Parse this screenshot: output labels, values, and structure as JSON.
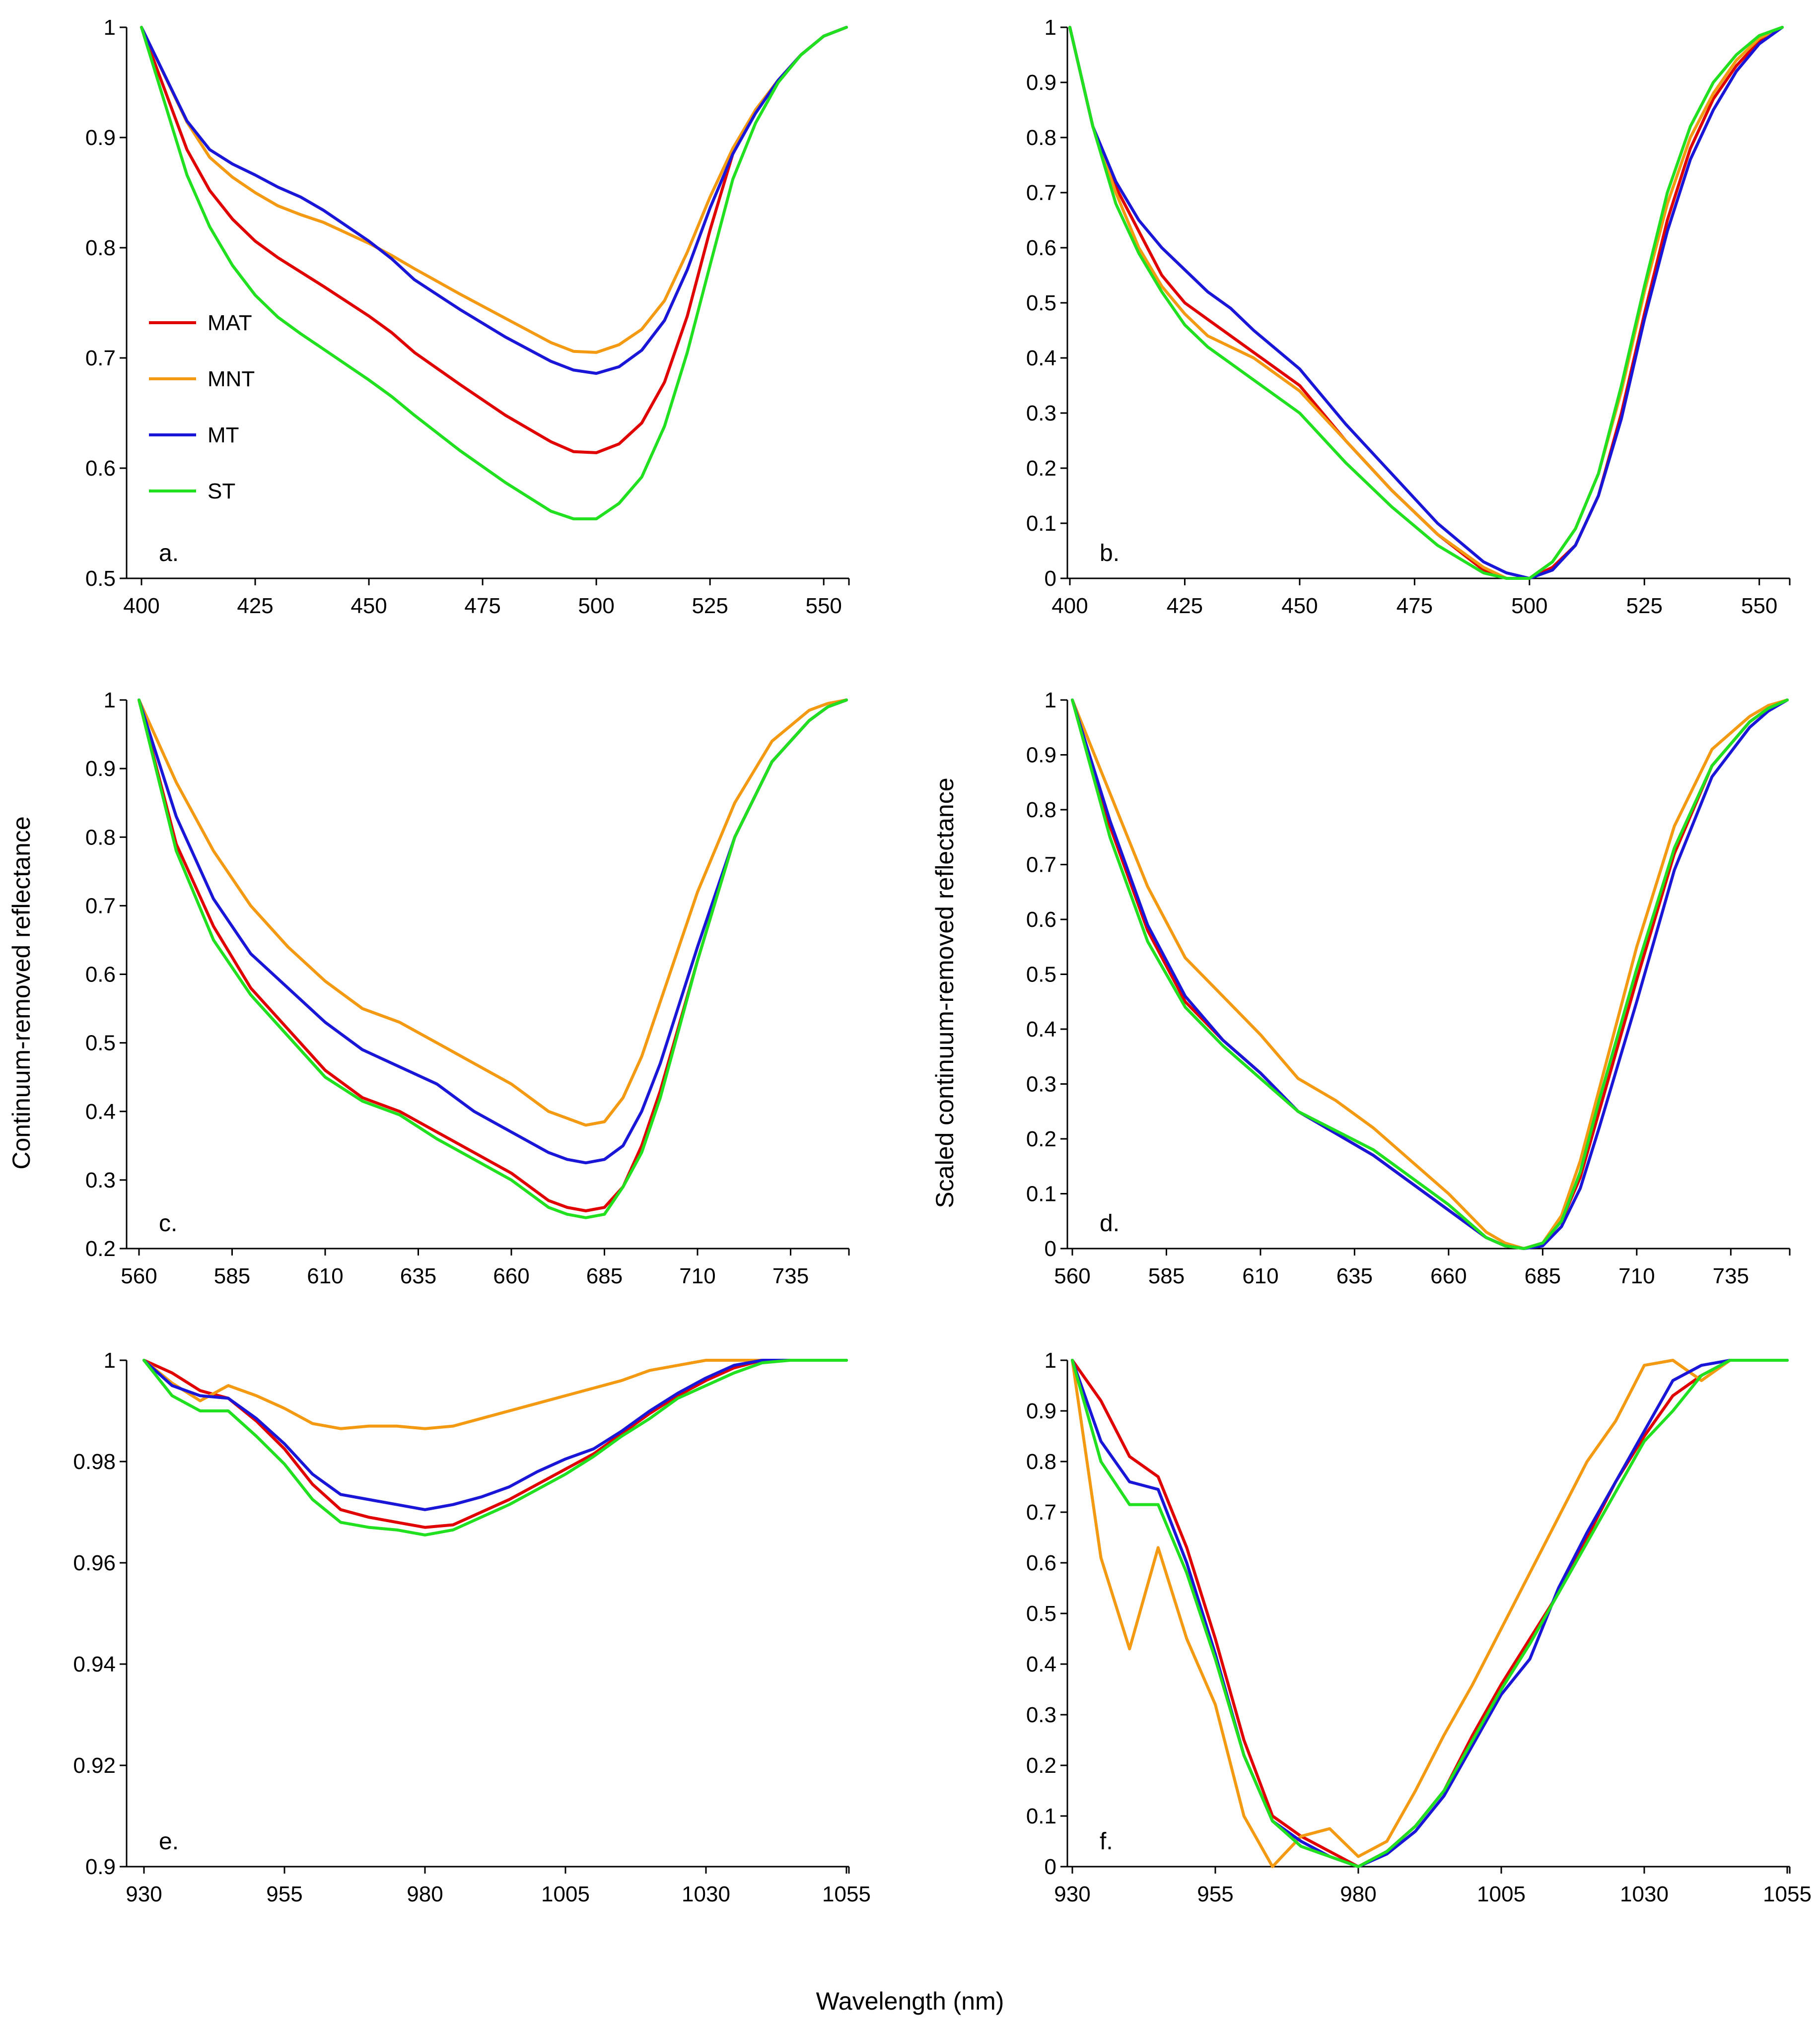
{
  "figure": {
    "shared_ylabel_left": "Continuum-removed reflectance",
    "shared_ylabel_right": "Scaled continuum-removed reflectance",
    "shared_xlabel": "Wavelength (nm)"
  },
  "legend": [
    {
      "name": "MAT",
      "color": "#e00000"
    },
    {
      "name": "MNT",
      "color": "#f39a12"
    },
    {
      "name": "MT",
      "color": "#1a16d8"
    },
    {
      "name": "ST",
      "color": "#20e020"
    }
  ],
  "chart_data": [
    {
      "type": "line",
      "panel": "a.",
      "xlim": [
        400,
        555
      ],
      "ylim": [
        0.5,
        1
      ],
      "xticks": [
        400,
        425,
        450,
        475,
        500,
        525,
        550
      ],
      "yticks": [
        0.5,
        0.6,
        0.7,
        0.8,
        0.9,
        1
      ],
      "ytick_labels": [
        "0.5",
        "0.6",
        "0.7",
        "0.8",
        "0.9",
        "1"
      ],
      "x": [
        400,
        410,
        415,
        420,
        425,
        430,
        435,
        440,
        450,
        455,
        460,
        470,
        480,
        490,
        495,
        500,
        505,
        510,
        515,
        520,
        525,
        530,
        535,
        540,
        545,
        550,
        555
      ],
      "series": [
        {
          "name": "MAT",
          "values": [
            1.0,
            0.889,
            0.852,
            0.826,
            0.806,
            0.791,
            0.778,
            0.765,
            0.738,
            0.723,
            0.705,
            0.676,
            0.648,
            0.624,
            0.615,
            0.614,
            0.622,
            0.641,
            0.678,
            0.738,
            0.816,
            0.885,
            0.925,
            0.952,
            0.975,
            0.992,
            1.0
          ]
        },
        {
          "name": "MNT",
          "values": [
            1.0,
            0.914,
            0.882,
            0.864,
            0.85,
            0.838,
            0.83,
            0.823,
            0.804,
            0.793,
            0.781,
            0.758,
            0.736,
            0.714,
            0.706,
            0.705,
            0.712,
            0.726,
            0.752,
            0.796,
            0.846,
            0.89,
            0.925,
            0.952,
            0.975,
            0.992,
            1.0
          ]
        },
        {
          "name": "MT",
          "values": [
            1.0,
            0.915,
            0.889,
            0.876,
            0.866,
            0.855,
            0.846,
            0.834,
            0.806,
            0.79,
            0.771,
            0.744,
            0.719,
            0.697,
            0.689,
            0.686,
            0.692,
            0.707,
            0.734,
            0.78,
            0.836,
            0.885,
            0.922,
            0.952,
            0.975,
            0.992,
            1.0
          ]
        },
        {
          "name": "ST",
          "values": [
            1.0,
            0.866,
            0.819,
            0.784,
            0.757,
            0.737,
            0.722,
            0.708,
            0.68,
            0.665,
            0.648,
            0.616,
            0.587,
            0.561,
            0.554,
            0.554,
            0.568,
            0.592,
            0.638,
            0.705,
            0.784,
            0.862,
            0.913,
            0.95,
            0.975,
            0.992,
            1.0
          ]
        }
      ]
    },
    {
      "type": "line",
      "panel": "b.",
      "xlim": [
        400,
        555
      ],
      "ylim": [
        0,
        1
      ],
      "xticks": [
        400,
        425,
        450,
        475,
        500,
        525,
        550
      ],
      "yticks": [
        0,
        0.1,
        0.2,
        0.3,
        0.4,
        0.5,
        0.6,
        0.7,
        0.8,
        0.9,
        1
      ],
      "ytick_labels": [
        "0",
        "0.1",
        "0.2",
        "0.3",
        "0.4",
        "0.5",
        "0.6",
        "0.7",
        "0.8",
        "0.9",
        "1"
      ],
      "x": [
        400,
        405,
        410,
        415,
        420,
        425,
        430,
        435,
        440,
        450,
        460,
        470,
        480,
        490,
        495,
        500,
        505,
        510,
        515,
        520,
        525,
        530,
        535,
        540,
        545,
        550,
        555
      ],
      "series": [
        {
          "name": "MAT",
          "values": [
            1.0,
            0.82,
            0.71,
            0.63,
            0.55,
            0.5,
            0.47,
            0.44,
            0.41,
            0.35,
            0.25,
            0.16,
            0.08,
            0.015,
            0.0,
            0.0,
            0.02,
            0.06,
            0.15,
            0.3,
            0.48,
            0.65,
            0.78,
            0.87,
            0.93,
            0.975,
            1.0
          ]
        },
        {
          "name": "MNT",
          "values": [
            1.0,
            0.82,
            0.7,
            0.6,
            0.53,
            0.48,
            0.44,
            0.42,
            0.4,
            0.34,
            0.25,
            0.16,
            0.08,
            0.02,
            0.0,
            0.0,
            0.03,
            0.09,
            0.19,
            0.34,
            0.52,
            0.68,
            0.8,
            0.88,
            0.94,
            0.98,
            1.0
          ]
        },
        {
          "name": "MT",
          "values": [
            1.0,
            0.82,
            0.72,
            0.65,
            0.6,
            0.56,
            0.52,
            0.49,
            0.45,
            0.38,
            0.28,
            0.19,
            0.1,
            0.03,
            0.01,
            0.0,
            0.015,
            0.06,
            0.15,
            0.29,
            0.47,
            0.63,
            0.76,
            0.85,
            0.92,
            0.97,
            1.0
          ]
        },
        {
          "name": "ST",
          "values": [
            1.0,
            0.82,
            0.68,
            0.59,
            0.52,
            0.46,
            0.42,
            0.39,
            0.36,
            0.3,
            0.21,
            0.13,
            0.06,
            0.01,
            0.0,
            0.0,
            0.03,
            0.09,
            0.19,
            0.35,
            0.53,
            0.7,
            0.82,
            0.9,
            0.95,
            0.985,
            1.0
          ]
        }
      ]
    },
    {
      "type": "line",
      "panel": "c.",
      "xlim": [
        560,
        750
      ],
      "ylim": [
        0.2,
        1
      ],
      "xticks": [
        560,
        585,
        610,
        635,
        660,
        685,
        710,
        735
      ],
      "yticks": [
        0.2,
        0.3,
        0.4,
        0.5,
        0.6,
        0.7,
        0.8,
        0.9,
        1
      ],
      "ytick_labels": [
        "0.2",
        "0.3",
        "0.4",
        "0.5",
        "0.6",
        "0.7",
        "0.8",
        "0.9",
        "1"
      ],
      "x": [
        560,
        570,
        580,
        590,
        600,
        610,
        620,
        630,
        640,
        650,
        660,
        670,
        675,
        680,
        685,
        690,
        695,
        700,
        710,
        720,
        730,
        740,
        745,
        750
      ],
      "series": [
        {
          "name": "MAT",
          "values": [
            1.0,
            0.79,
            0.67,
            0.58,
            0.52,
            0.46,
            0.42,
            0.4,
            0.37,
            0.34,
            0.31,
            0.27,
            0.26,
            0.255,
            0.26,
            0.29,
            0.35,
            0.43,
            0.62,
            0.8,
            0.91,
            0.97,
            0.99,
            1.0
          ]
        },
        {
          "name": "MNT",
          "values": [
            1.0,
            0.88,
            0.78,
            0.7,
            0.64,
            0.59,
            0.55,
            0.53,
            0.5,
            0.47,
            0.44,
            0.4,
            0.39,
            0.38,
            0.385,
            0.42,
            0.48,
            0.56,
            0.72,
            0.85,
            0.94,
            0.985,
            0.995,
            1.0
          ]
        },
        {
          "name": "MT",
          "values": [
            1.0,
            0.83,
            0.71,
            0.63,
            0.58,
            0.53,
            0.49,
            0.465,
            0.44,
            0.4,
            0.37,
            0.34,
            0.33,
            0.325,
            0.33,
            0.35,
            0.4,
            0.47,
            0.64,
            0.8,
            0.91,
            0.97,
            0.99,
            1.0
          ]
        },
        {
          "name": "ST",
          "values": [
            1.0,
            0.78,
            0.65,
            0.57,
            0.51,
            0.45,
            0.415,
            0.395,
            0.36,
            0.33,
            0.3,
            0.26,
            0.25,
            0.245,
            0.25,
            0.29,
            0.34,
            0.42,
            0.62,
            0.8,
            0.91,
            0.97,
            0.99,
            1.0
          ]
        }
      ]
    },
    {
      "type": "line",
      "panel": "d.",
      "xlim": [
        560,
        750
      ],
      "ylim": [
        0,
        1
      ],
      "xticks": [
        560,
        585,
        610,
        635,
        660,
        685,
        710,
        735
      ],
      "yticks": [
        0,
        0.1,
        0.2,
        0.3,
        0.4,
        0.5,
        0.6,
        0.7,
        0.8,
        0.9,
        1
      ],
      "ytick_labels": [
        "0",
        "0.1",
        "0.2",
        "0.3",
        "0.4",
        "0.5",
        "0.6",
        "0.7",
        "0.8",
        "0.9",
        "1"
      ],
      "x": [
        560,
        570,
        580,
        590,
        600,
        610,
        620,
        630,
        640,
        650,
        660,
        670,
        675,
        680,
        685,
        690,
        695,
        700,
        710,
        720,
        730,
        740,
        745,
        750
      ],
      "series": [
        {
          "name": "MAT",
          "values": [
            1.0,
            0.77,
            0.58,
            0.45,
            0.38,
            0.32,
            0.25,
            0.21,
            0.17,
            0.12,
            0.07,
            0.02,
            0.005,
            0.0,
            0.01,
            0.05,
            0.13,
            0.25,
            0.49,
            0.72,
            0.88,
            0.96,
            0.985,
            1.0
          ]
        },
        {
          "name": "MNT",
          "values": [
            1.0,
            0.83,
            0.66,
            0.53,
            0.46,
            0.39,
            0.31,
            0.27,
            0.22,
            0.16,
            0.1,
            0.03,
            0.01,
            0.0,
            0.01,
            0.06,
            0.16,
            0.29,
            0.55,
            0.77,
            0.91,
            0.97,
            0.99,
            1.0
          ]
        },
        {
          "name": "MT",
          "values": [
            1.0,
            0.78,
            0.59,
            0.46,
            0.38,
            0.32,
            0.25,
            0.21,
            0.17,
            0.12,
            0.07,
            0.02,
            0.005,
            0.0,
            0.005,
            0.04,
            0.11,
            0.22,
            0.45,
            0.69,
            0.86,
            0.95,
            0.98,
            1.0
          ]
        },
        {
          "name": "ST",
          "values": [
            1.0,
            0.75,
            0.56,
            0.44,
            0.37,
            0.31,
            0.25,
            0.215,
            0.18,
            0.13,
            0.08,
            0.02,
            0.005,
            0.0,
            0.01,
            0.05,
            0.14,
            0.27,
            0.51,
            0.73,
            0.88,
            0.96,
            0.985,
            1.0
          ]
        }
      ]
    },
    {
      "type": "line",
      "panel": "e.",
      "xlim": [
        930,
        1055
      ],
      "ylim": [
        0.9,
        1
      ],
      "xticks": [
        930,
        955,
        980,
        1005,
        1030,
        1055
      ],
      "yticks": [
        0.9,
        0.92,
        0.94,
        0.96,
        0.98,
        1
      ],
      "ytick_labels": [
        "0.9",
        "0.92",
        "0.94",
        "0.96",
        "0.98",
        "1"
      ],
      "x": [
        930,
        935,
        940,
        945,
        950,
        955,
        960,
        965,
        970,
        975,
        980,
        985,
        990,
        995,
        1000,
        1005,
        1010,
        1015,
        1020,
        1025,
        1030,
        1035,
        1040,
        1045,
        1050,
        1055
      ],
      "series": [
        {
          "name": "MAT",
          "values": [
            1.0,
            0.9975,
            0.994,
            0.9925,
            0.988,
            0.9825,
            0.9755,
            0.9705,
            0.969,
            0.968,
            0.967,
            0.9675,
            0.97,
            0.9725,
            0.9755,
            0.9785,
            0.9815,
            0.9855,
            0.9895,
            0.993,
            0.996,
            0.9985,
            1.0,
            1.0,
            1.0,
            1.0
          ]
        },
        {
          "name": "MNT",
          "values": [
            1.0,
            0.9955,
            0.992,
            0.995,
            0.993,
            0.9905,
            0.9875,
            0.9865,
            0.987,
            0.987,
            0.9865,
            0.987,
            0.9885,
            0.99,
            0.9915,
            0.993,
            0.9945,
            0.996,
            0.998,
            0.999,
            1.0,
            1.0,
            1.0,
            1.0,
            1.0,
            1.0
          ]
        },
        {
          "name": "MT",
          "values": [
            1.0,
            0.995,
            0.993,
            0.9925,
            0.9885,
            0.9835,
            0.9775,
            0.9735,
            0.9725,
            0.9715,
            0.9705,
            0.9715,
            0.973,
            0.975,
            0.978,
            0.9805,
            0.9825,
            0.986,
            0.99,
            0.9935,
            0.9965,
            0.999,
            1.0,
            1.0,
            1.0,
            1.0
          ]
        },
        {
          "name": "ST",
          "values": [
            1.0,
            0.993,
            0.99,
            0.99,
            0.985,
            0.9795,
            0.9725,
            0.968,
            0.967,
            0.9665,
            0.9655,
            0.9665,
            0.969,
            0.9715,
            0.9745,
            0.9775,
            0.981,
            0.985,
            0.9885,
            0.9925,
            0.995,
            0.9975,
            0.9995,
            1.0,
            1.0,
            1.0
          ]
        }
      ]
    },
    {
      "type": "line",
      "panel": "f.",
      "xlim": [
        930,
        1055
      ],
      "ylim": [
        0,
        1
      ],
      "xticks": [
        930,
        955,
        980,
        1005,
        1030,
        1055
      ],
      "yticks": [
        0,
        0.1,
        0.2,
        0.3,
        0.4,
        0.5,
        0.6,
        0.7,
        0.8,
        0.9,
        1
      ],
      "ytick_labels": [
        "0",
        "0.1",
        "0.2",
        "0.3",
        "0.4",
        "0.5",
        "0.6",
        "0.7",
        "0.8",
        "0.9",
        "1"
      ],
      "x": [
        930,
        935,
        940,
        945,
        950,
        955,
        960,
        965,
        970,
        975,
        980,
        985,
        990,
        995,
        1000,
        1005,
        1010,
        1015,
        1020,
        1025,
        1030,
        1035,
        1040,
        1045,
        1050,
        1055
      ],
      "series": [
        {
          "name": "MAT",
          "values": [
            1.0,
            0.92,
            0.81,
            0.77,
            0.63,
            0.45,
            0.25,
            0.1,
            0.06,
            0.03,
            0.0,
            0.03,
            0.08,
            0.15,
            0.26,
            0.36,
            0.45,
            0.54,
            0.65,
            0.76,
            0.85,
            0.93,
            0.97,
            1.0,
            1.0,
            1.0
          ]
        },
        {
          "name": "MNT",
          "values": [
            1.0,
            0.61,
            0.43,
            0.63,
            0.45,
            0.32,
            0.1,
            0.0,
            0.06,
            0.075,
            0.02,
            0.05,
            0.15,
            0.26,
            0.36,
            0.47,
            0.58,
            0.69,
            0.8,
            0.88,
            0.99,
            1.0,
            0.96,
            1.0,
            1.0,
            1.0
          ]
        },
        {
          "name": "MT",
          "values": [
            1.0,
            0.84,
            0.76,
            0.745,
            0.6,
            0.42,
            0.22,
            0.09,
            0.05,
            0.02,
            0.0,
            0.025,
            0.07,
            0.14,
            0.24,
            0.34,
            0.41,
            0.55,
            0.66,
            0.76,
            0.86,
            0.96,
            0.99,
            1.0,
            1.0,
            1.0
          ]
        },
        {
          "name": "ST",
          "values": [
            1.0,
            0.8,
            0.715,
            0.715,
            0.58,
            0.41,
            0.22,
            0.09,
            0.04,
            0.02,
            0.0,
            0.03,
            0.08,
            0.15,
            0.25,
            0.35,
            0.44,
            0.54,
            0.64,
            0.74,
            0.84,
            0.9,
            0.97,
            1.0,
            1.0,
            1.0
          ]
        }
      ]
    }
  ]
}
